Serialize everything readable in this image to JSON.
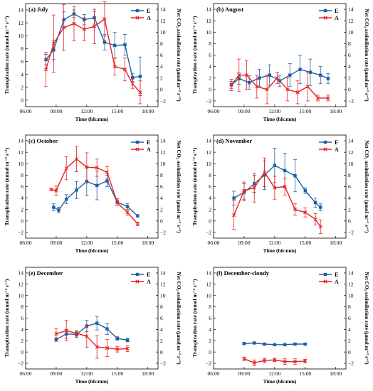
{
  "colors": {
    "E": "#1f5fa3",
    "A": "#e8201f",
    "axis": "#000000"
  },
  "chart_data": [
    {
      "type": "line",
      "title": "(a) July",
      "xlabel": "Time (hh:mm)",
      "ylabel": "Transpiration rate (mmol m⁻² s⁻¹)",
      "y2label": "Net CO₂ assimilation rate (μmol m⁻² s⁻¹)",
      "xlim": [
        6,
        19
      ],
      "ylim": [
        -1,
        15
      ],
      "y2lim": [
        -3,
        15
      ],
      "xticks": [
        "06:00",
        "09:00",
        "12:00",
        "15:00",
        "18:00"
      ],
      "legend_position": "top-right",
      "series": [
        {
          "name": "E",
          "axis": "left",
          "marker": "square",
          "x": [
            8,
            8.75,
            9.75,
            10.75,
            11.75,
            12.75,
            13.75,
            14.75,
            15.75,
            16.5,
            17.25
          ],
          "y": [
            6.3,
            7.8,
            12.5,
            13.4,
            12.5,
            12.8,
            9.0,
            8.5,
            8.6,
            3.5,
            3.7
          ],
          "err": [
            0.8,
            1.5,
            1.2,
            0.6,
            0.8,
            1.0,
            1.2,
            2.0,
            1.6,
            0.6,
            3.0
          ]
        },
        {
          "name": "A",
          "axis": "right",
          "marker": "x",
          "x": [
            8,
            8.75,
            9.75,
            10.75,
            11.75,
            12.75,
            13.75,
            14.75,
            15.75,
            16.5,
            17.25
          ],
          "y": [
            3.5,
            8.0,
            10.8,
            11.5,
            10.5,
            11.0,
            12.3,
            4.0,
            3.5,
            1.0,
            -0.5
          ],
          "err": [
            3.0,
            5.0,
            4.0,
            3.0,
            2.0,
            3.0,
            3.0,
            1.5,
            2.0,
            0.8,
            2.0
          ]
        }
      ]
    },
    {
      "type": "line",
      "title": "(b) August",
      "xlabel": "Time (hh:mm)",
      "ylabel": "Transpiration rate (mmol m⁻² s⁻¹)",
      "y2label": "Net CO₂ assimilation rate (μmol m⁻² s⁻¹)",
      "xlim": [
        6,
        19
      ],
      "ylim": [
        -3,
        15
      ],
      "y2lim": [
        -3,
        15
      ],
      "xticks": [
        "06:00",
        "09:00",
        "12:00",
        "15:00",
        "18:00"
      ],
      "legend_position": "top-right",
      "series": [
        {
          "name": "E",
          "axis": "left",
          "marker": "square",
          "x": [
            7.75,
            8.5,
            9.5,
            10.5,
            11.5,
            12.5,
            13.5,
            14.5,
            15.5,
            16.5,
            17.25
          ],
          "y": [
            0.8,
            1.9,
            1.2,
            2.0,
            2.5,
            1.5,
            2.5,
            3.5,
            3.0,
            2.5,
            1.9
          ],
          "err": [
            0.6,
            1.0,
            1.2,
            1.5,
            1.8,
            1.0,
            2.0,
            2.5,
            2.3,
            1.5,
            0.9
          ]
        },
        {
          "name": "A",
          "axis": "right",
          "marker": "x",
          "x": [
            7.75,
            8.5,
            9.25,
            10.25,
            11.25,
            12.25,
            13.25,
            14.25,
            15.25,
            16.25,
            17.25
          ],
          "y": [
            0.8,
            2.5,
            2.5,
            0.5,
            0.0,
            2.0,
            0.0,
            -0.5,
            0.5,
            -1.5,
            -1.5
          ],
          "err": [
            1.0,
            2.8,
            2.5,
            2.0,
            2.5,
            1.0,
            2.0,
            2.0,
            2.5,
            0.5,
            0.5
          ]
        }
      ]
    },
    {
      "type": "line",
      "title": "(c) October",
      "xlabel": "Time (hh:mm)",
      "ylabel": "Transpiration rate (mmol m⁻² s⁻¹)",
      "y2label": "Net CO₂ assimilation rate (μmol m⁻² s⁻¹)",
      "xlim": [
        6,
        19
      ],
      "ylim": [
        -3,
        15
      ],
      "y2lim": [
        -3,
        15
      ],
      "xticks": [
        "06:00",
        "09:00",
        "12:00",
        "15:00",
        "18:00"
      ],
      "legend_position": "top-right",
      "series": [
        {
          "name": "E",
          "axis": "left",
          "marker": "square",
          "x": [
            8.75,
            9.25,
            10,
            11,
            12,
            13,
            14,
            15,
            16,
            17
          ],
          "y": [
            2.4,
            1.9,
            3.8,
            5.4,
            6.9,
            6.2,
            7.0,
            3.3,
            2.5,
            0.9
          ],
          "err": [
            0.6,
            0.5,
            0.8,
            1.5,
            2.5,
            2.5,
            1.0,
            0.6,
            0.5,
            0.2
          ]
        },
        {
          "name": "A",
          "axis": "right",
          "marker": "x",
          "x": [
            8.5,
            9,
            10,
            11,
            12,
            13,
            14,
            15,
            16,
            17
          ],
          "y": [
            5.5,
            5.3,
            9.2,
            10.8,
            9.4,
            9.3,
            8.5,
            3.2,
            1.5,
            -0.5
          ],
          "err": [
            0.2,
            0.8,
            2.0,
            2.2,
            2.5,
            1.5,
            1.0,
            0.5,
            0.5,
            0.3
          ]
        }
      ]
    },
    {
      "type": "line",
      "title": "(d) November",
      "xlabel": "Time (hh:mm)",
      "ylabel": "Transpiration rate (mmol m⁻² s⁻¹)",
      "y2label": "Net CO₂ assimilation rate (μmol m⁻² s⁻¹)",
      "xlim": [
        6,
        19
      ],
      "ylim": [
        -3,
        15
      ],
      "y2lim": [
        -3,
        15
      ],
      "xticks": [
        "06:00",
        "09:00",
        "12:00",
        "15:00",
        "18:00"
      ],
      "legend_position": "top-right",
      "series": [
        {
          "name": "E",
          "axis": "left",
          "marker": "square",
          "x": [
            8,
            9,
            10,
            11,
            12,
            13,
            14,
            15,
            16,
            16.5
          ],
          "y": [
            4.0,
            5.0,
            6.5,
            8.0,
            9.7,
            8.8,
            7.9,
            5.3,
            3.2,
            2.4
          ],
          "err": [
            1.2,
            1.5,
            1.5,
            2.5,
            3.0,
            3.0,
            2.8,
            0.5,
            0.8,
            0.6
          ]
        },
        {
          "name": "A",
          "axis": "right",
          "marker": "x",
          "x": [
            8,
            9,
            10,
            11,
            12,
            13,
            14,
            15,
            16,
            16.5
          ],
          "y": [
            1.0,
            5.3,
            5.8,
            8.5,
            5.8,
            6.0,
            2.0,
            1.5,
            0.3,
            -1.0
          ],
          "err": [
            2.5,
            1.5,
            2.5,
            2.5,
            2.0,
            1.5,
            1.0,
            0.8,
            1.0,
            1.2
          ]
        }
      ]
    },
    {
      "type": "line",
      "title": "(e) December",
      "xlabel": "Time (hh:mm)",
      "ylabel": "Transpiration rate (mmol m⁻² s⁻¹)",
      "y2label": "Net CO₂ assimilation rate (μmol m⁻² s⁻¹)",
      "xlim": [
        6,
        19
      ],
      "ylim": [
        -3,
        15
      ],
      "y2lim": [
        -3,
        15
      ],
      "xticks": [
        "06:00",
        "09:00",
        "12:00",
        "15:00",
        "18:00"
      ],
      "legend_position": "top-right",
      "series": [
        {
          "name": "E",
          "axis": "left",
          "marker": "square",
          "x": [
            9,
            10,
            11,
            12,
            13,
            14,
            15,
            16
          ],
          "y": [
            2.2,
            3.2,
            3.1,
            4.6,
            5.1,
            4.1,
            2.4,
            2.1
          ],
          "err": [
            0.3,
            0.8,
            0.5,
            1.0,
            1.2,
            1.0,
            0.3,
            0.3
          ]
        },
        {
          "name": "A",
          "axis": "right",
          "marker": "x",
          "x": [
            9,
            10,
            11,
            12,
            13,
            14,
            15,
            16
          ],
          "y": [
            3.2,
            3.8,
            3.3,
            2.8,
            0.9,
            0.7,
            0.5,
            0.6
          ],
          "err": [
            1.0,
            1.8,
            0.5,
            2.0,
            2.0,
            1.5,
            0.5,
            0.5
          ]
        }
      ]
    },
    {
      "type": "line",
      "title": "(f) December-cloudy",
      "xlabel": "Time (hh:mm)",
      "ylabel": "Transpiration rate (mmol m⁻² s⁻¹)",
      "y2label": "Net CO₂ assimilation rate (μmol m⁻² s⁻¹)",
      "xlim": [
        6,
        19
      ],
      "ylim": [
        -3,
        15
      ],
      "y2lim": [
        -3,
        15
      ],
      "xticks": [
        "06:00",
        "09:00",
        "12:00",
        "15:00",
        "18:00"
      ],
      "legend_position": "top-right",
      "series": [
        {
          "name": "E",
          "axis": "left",
          "marker": "square",
          "x": [
            9,
            10,
            11,
            12,
            13,
            14,
            15
          ],
          "y": [
            1.5,
            1.6,
            1.4,
            1.3,
            1.3,
            1.4,
            1.4
          ],
          "err": [
            0.1,
            0.1,
            0.1,
            0.1,
            0.2,
            0.2,
            0.2
          ]
        },
        {
          "name": "A",
          "axis": "right",
          "marker": "x",
          "x": [
            9,
            10,
            11,
            12,
            13,
            14,
            15
          ],
          "y": [
            -1.2,
            -1.9,
            -1.5,
            -1.4,
            -1.7,
            -1.7,
            -1.6
          ],
          "err": [
            0.3,
            0.5,
            0.4,
            0.3,
            0.5,
            0.5,
            0.3
          ]
        }
      ]
    }
  ]
}
